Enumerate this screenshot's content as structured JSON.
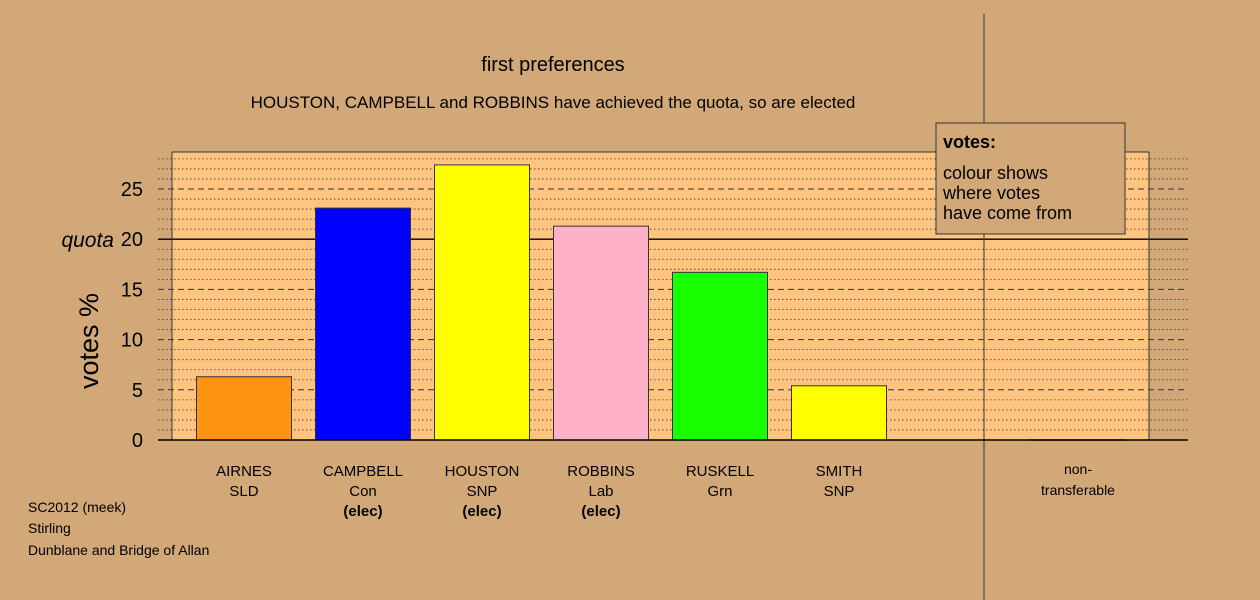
{
  "chart_data": {
    "type": "bar",
    "title": "first preferences",
    "subtitle": "HOUSTON, CAMPBELL and ROBBINS have achieved the quota, so are elected",
    "ylabel": "votes %",
    "ylim": [
      0,
      28.8
    ],
    "yticks": [
      0,
      5,
      10,
      15,
      20,
      25
    ],
    "quota": {
      "value": 20,
      "label": "quota"
    },
    "grid": true,
    "categories": [
      {
        "name": "AIRNES",
        "party": "SLD",
        "status": "",
        "value": 6.3,
        "color": "#ff9411"
      },
      {
        "name": "CAMPBELL",
        "party": "Con",
        "status": "(elec)",
        "value": 23.1,
        "color": "#0000ff"
      },
      {
        "name": "HOUSTON",
        "party": "SNP",
        "status": "(elec)",
        "value": 27.4,
        "color": "#ffff00"
      },
      {
        "name": "ROBBINS",
        "party": "Lab",
        "status": "(elec)",
        "value": 21.3,
        "color": "#ffb1c8"
      },
      {
        "name": "RUSKELL",
        "party": "Grn",
        "status": "",
        "value": 16.7,
        "color": "#1aff00"
      },
      {
        "name": "SMITH",
        "party": "SNP",
        "status": "",
        "value": 5.4,
        "color": "#ffff00"
      }
    ],
    "non_transferable": {
      "label_line1": "non-",
      "label_line2": "transferable",
      "value": 0
    },
    "legend": {
      "title": "votes:",
      "lines": [
        "colour shows",
        "where votes",
        "have come from"
      ],
      "position": "top-right"
    },
    "colors": {
      "background": "#d2a878",
      "plot_background": "#ffc580"
    }
  },
  "footer": {
    "line1": "SC2012 (meek)",
    "line2": "Stirling",
    "line3": "Dunblane and Bridge of Allan"
  }
}
